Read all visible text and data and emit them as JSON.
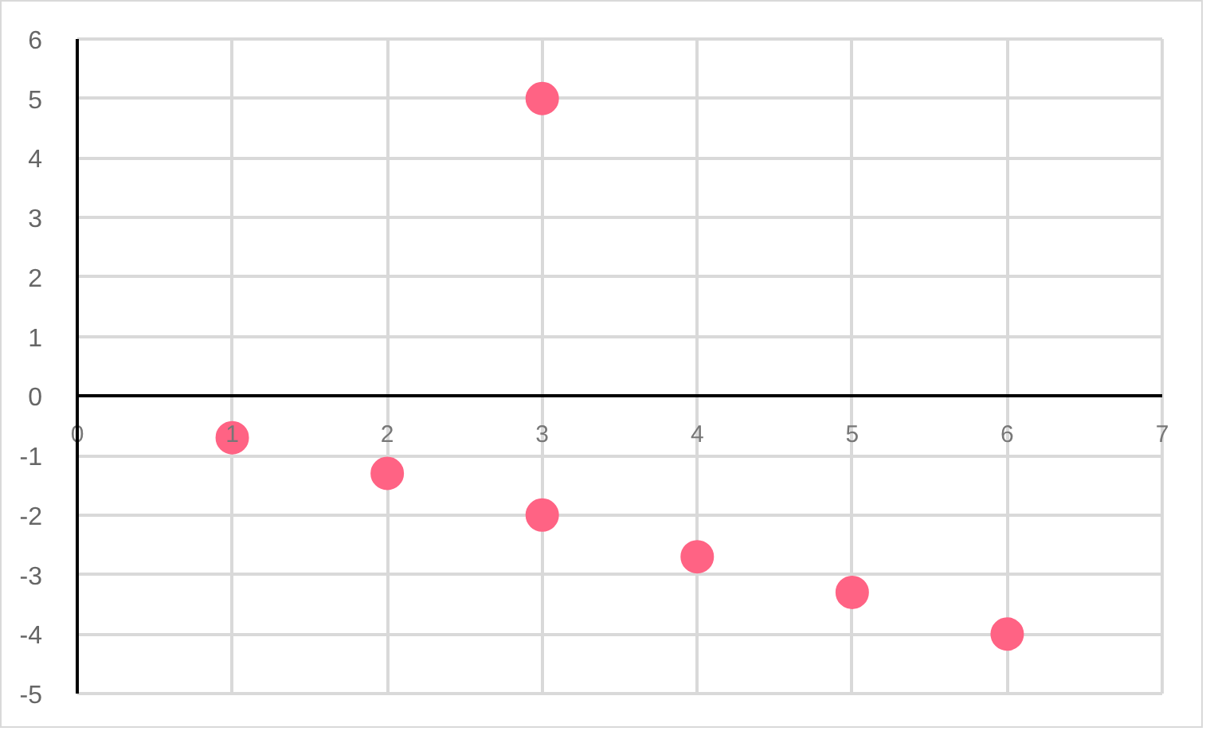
{
  "chart_data": {
    "type": "scatter",
    "series": [
      {
        "color": "#ff6384",
        "x": [
          1,
          2,
          3,
          4,
          5,
          6,
          3
        ],
        "values": [
          -0.7,
          -1.3,
          -2,
          -2.7,
          -3.3,
          -4,
          5
        ]
      }
    ],
    "xlim": [
      0,
      7
    ],
    "ylim": [
      -5,
      6
    ],
    "xticks": [
      0,
      1,
      2,
      3,
      4,
      5,
      6,
      7
    ],
    "yticks": [
      -5,
      -4,
      -3,
      -2,
      -1,
      0,
      1,
      2,
      3,
      4,
      5,
      6
    ],
    "grid": true,
    "marker": "circle"
  }
}
